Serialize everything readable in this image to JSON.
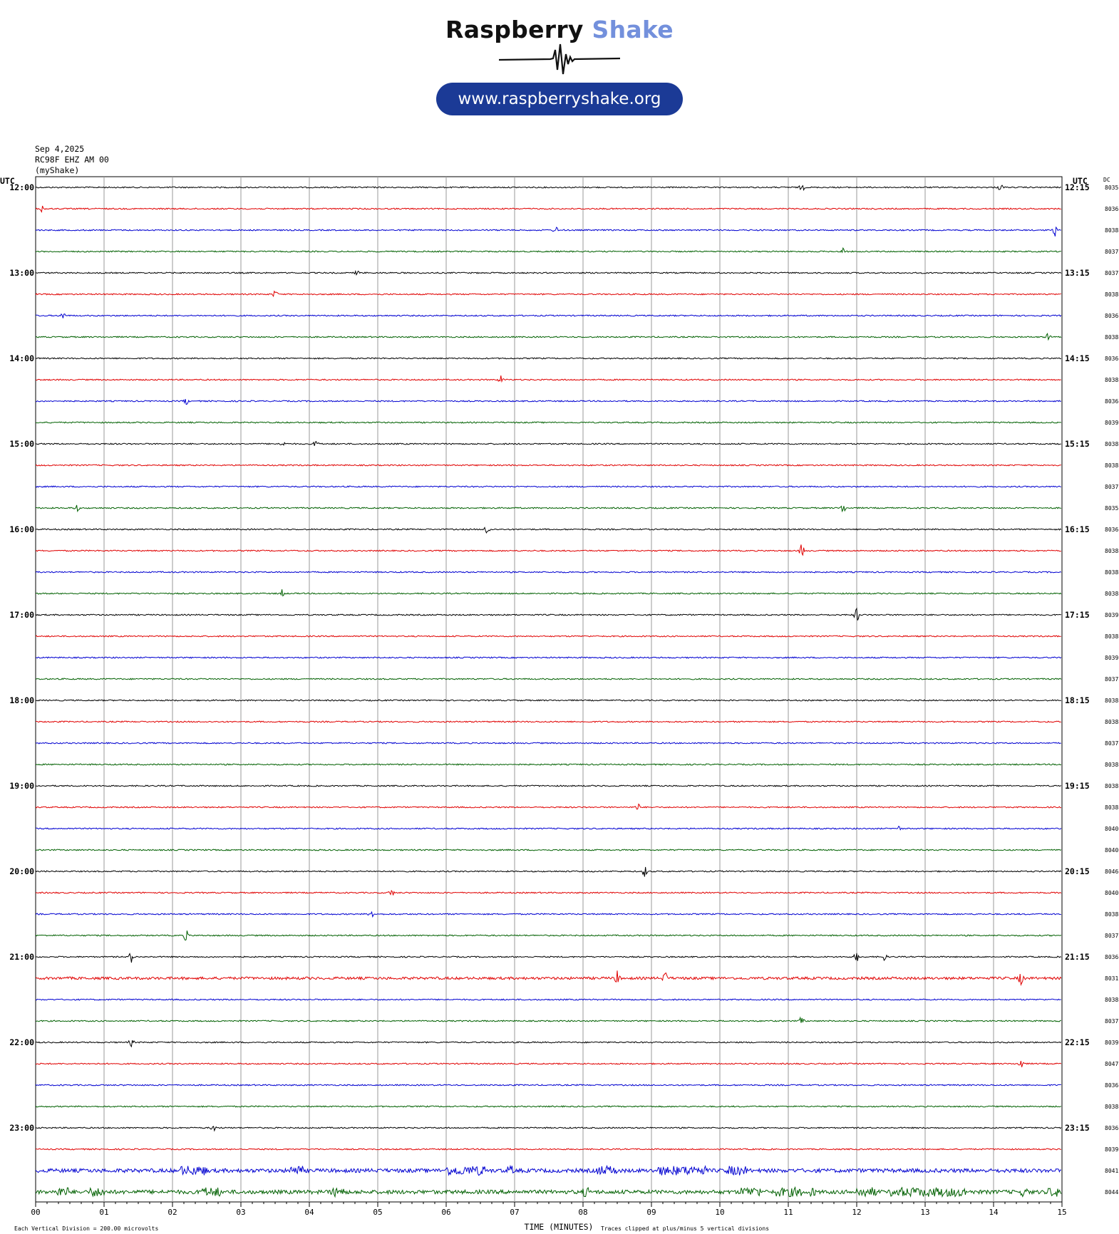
{
  "logo": {
    "brand_word1": "Raspberry",
    "brand_word2": "Shake",
    "url": "www.raspberryshake.org",
    "brand_color": "#1b3a96",
    "accent_color": "#7390dc"
  },
  "header": {
    "date": "Sep 4,2025",
    "station": "RC98F EHZ AM 00",
    "owner": "(myShake)"
  },
  "chart_data": {
    "type": "line",
    "subtype": "helicorder",
    "left_axis_title": "UTC",
    "right_axis_title": "UTC",
    "dc_title": "DC",
    "xlabel": "TIME (MINUTES)",
    "xlim": [
      0,
      15
    ],
    "x_ticks": [
      "00",
      "01",
      "02",
      "03",
      "04",
      "05",
      "06",
      "07",
      "08",
      "09",
      "10",
      "11",
      "12",
      "13",
      "14",
      "15"
    ],
    "footer_left": "Each Vertical Division =  200.00 microvolts",
    "footer_right": "Traces clipped at plus/minus 5 vertical divisions",
    "trace_colors": [
      "#000000",
      "#e00000",
      "#0000d0",
      "#006000"
    ],
    "left_time_labels": [
      "12:00",
      "13:00",
      "14:00",
      "15:00",
      "16:00",
      "17:00",
      "18:00",
      "19:00",
      "20:00",
      "21:00",
      "22:00",
      "23:00"
    ],
    "right_time_labels": [
      "12:15",
      "13:15",
      "14:15",
      "15:15",
      "16:15",
      "17:15",
      "18:15",
      "19:15",
      "20:15",
      "21:15",
      "22:15",
      "23:15"
    ],
    "dc_values": [
      "8035",
      "8036",
      "8038",
      "8037",
      "8037",
      "8038",
      "8036",
      "8038",
      "8036",
      "8038",
      "8036",
      "8039",
      "8038",
      "8038",
      "8037",
      "8035",
      "8036",
      "8038",
      "8038",
      "8038",
      "8039",
      "8038",
      "8039",
      "8037",
      "8038",
      "8038",
      "8037",
      "8038",
      "8038",
      "8038",
      "8040",
      "8040",
      "8046",
      "8040",
      "8038",
      "8037",
      "8036",
      "8031",
      "8038",
      "8037",
      "8039",
      "8047",
      "8036",
      "8038",
      "8036",
      "8039",
      "8041",
      "8044"
    ],
    "noise_level": [
      1,
      1,
      1,
      1,
      1,
      1,
      1,
      1,
      1,
      1,
      1,
      1,
      1,
      1,
      1,
      1,
      1,
      1,
      1,
      1,
      1,
      1,
      1,
      1,
      1,
      1,
      1,
      1,
      1,
      1,
      1,
      1,
      1,
      1,
      1,
      1,
      1,
      2,
      1,
      1,
      1,
      1,
      1,
      1,
      1,
      1,
      3,
      3
    ],
    "events": [
      {
        "row": 0,
        "minute": 11.2,
        "amp": 2
      },
      {
        "row": 0,
        "minute": 14.1,
        "amp": 2
      },
      {
        "row": 1,
        "minute": 0.1,
        "amp": 2
      },
      {
        "row": 2,
        "minute": 7.6,
        "amp": 2
      },
      {
        "row": 2,
        "minute": 14.9,
        "amp": 3
      },
      {
        "row": 3,
        "minute": 11.8,
        "amp": 2
      },
      {
        "row": 4,
        "minute": 4.7,
        "amp": 1
      },
      {
        "row": 5,
        "minute": 3.5,
        "amp": 2
      },
      {
        "row": 6,
        "minute": 0.4,
        "amp": 2
      },
      {
        "row": 7,
        "minute": 14.8,
        "amp": 2
      },
      {
        "row": 9,
        "minute": 6.8,
        "amp": 2
      },
      {
        "row": 10,
        "minute": 2.2,
        "amp": 2
      },
      {
        "row": 12,
        "minute": 3.6,
        "amp": 2
      },
      {
        "row": 12,
        "minute": 4.1,
        "amp": 2
      },
      {
        "row": 15,
        "minute": 0.6,
        "amp": 2
      },
      {
        "row": 15,
        "minute": 11.8,
        "amp": 3
      },
      {
        "row": 16,
        "minute": 6.6,
        "amp": 4
      },
      {
        "row": 17,
        "minute": 11.2,
        "amp": 4
      },
      {
        "row": 19,
        "minute": 3.6,
        "amp": 2
      },
      {
        "row": 20,
        "minute": 12.0,
        "amp": 4
      },
      {
        "row": 29,
        "minute": 8.8,
        "amp": 2
      },
      {
        "row": 30,
        "minute": 12.6,
        "amp": 2
      },
      {
        "row": 32,
        "minute": 8.9,
        "amp": 3
      },
      {
        "row": 33,
        "minute": 5.2,
        "amp": 2
      },
      {
        "row": 34,
        "minute": 4.9,
        "amp": 3
      },
      {
        "row": 35,
        "minute": 2.2,
        "amp": 3
      },
      {
        "row": 36,
        "minute": 1.4,
        "amp": 3
      },
      {
        "row": 36,
        "minute": 12.0,
        "amp": 3
      },
      {
        "row": 36,
        "minute": 12.4,
        "amp": 2
      },
      {
        "row": 37,
        "minute": 8.5,
        "amp": 4
      },
      {
        "row": 37,
        "minute": 9.2,
        "amp": 4
      },
      {
        "row": 37,
        "minute": 14.4,
        "amp": 4
      },
      {
        "row": 39,
        "minute": 11.2,
        "amp": 3
      },
      {
        "row": 40,
        "minute": 1.4,
        "amp": 2
      },
      {
        "row": 41,
        "minute": 14.4,
        "amp": 3
      },
      {
        "row": 44,
        "minute": 2.6,
        "amp": 2
      }
    ],
    "bursts": [
      {
        "row": 46,
        "from": 2.1,
        "to": 2.5,
        "amp": 3
      },
      {
        "row": 46,
        "from": 3.7,
        "to": 3.9,
        "amp": 3
      },
      {
        "row": 46,
        "from": 6.0,
        "to": 6.6,
        "amp": 3
      },
      {
        "row": 46,
        "from": 6.9,
        "to": 7.0,
        "amp": 3
      },
      {
        "row": 46,
        "from": 8.2,
        "to": 8.5,
        "amp": 3
      },
      {
        "row": 46,
        "from": 9.1,
        "to": 9.8,
        "amp": 3
      },
      {
        "row": 46,
        "from": 10.1,
        "to": 10.4,
        "amp": 3
      },
      {
        "row": 47,
        "from": 0.3,
        "to": 0.5,
        "amp": 3
      },
      {
        "row": 47,
        "from": 0.8,
        "to": 1.0,
        "amp": 3
      },
      {
        "row": 47,
        "from": 2.4,
        "to": 2.7,
        "amp": 3
      },
      {
        "row": 47,
        "from": 4.3,
        "to": 4.5,
        "amp": 3
      },
      {
        "row": 47,
        "from": 8.0,
        "to": 8.1,
        "amp": 3
      },
      {
        "row": 47,
        "from": 10.3,
        "to": 10.6,
        "amp": 3
      },
      {
        "row": 47,
        "from": 10.8,
        "to": 11.2,
        "amp": 3
      },
      {
        "row": 47,
        "from": 11.3,
        "to": 11.4,
        "amp": 3
      },
      {
        "row": 47,
        "from": 12.0,
        "to": 12.3,
        "amp": 3
      },
      {
        "row": 47,
        "from": 12.5,
        "to": 13.6,
        "amp": 3
      },
      {
        "row": 47,
        "from": 14.4,
        "to": 14.5,
        "amp": 3
      },
      {
        "row": 47,
        "from": 14.8,
        "to": 15.0,
        "amp": 3
      }
    ]
  }
}
